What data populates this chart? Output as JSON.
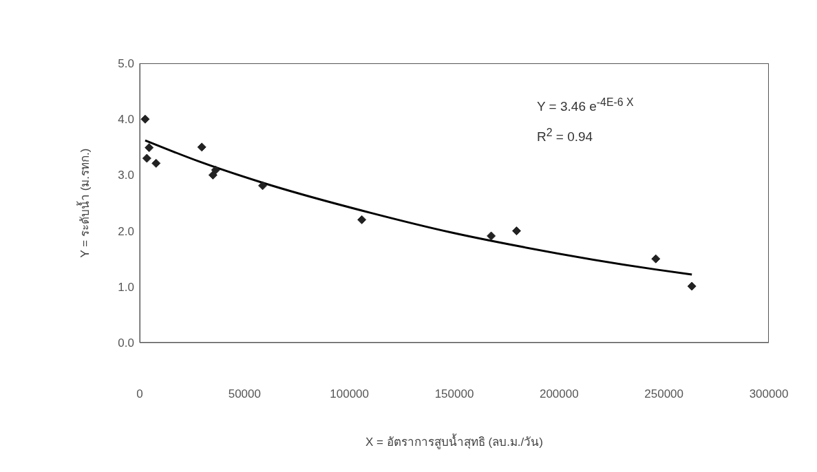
{
  "chart_data": {
    "type": "scatter",
    "xlabel": "X =  อัตราการสูบน้ำสุทธิ (ลบ.ม./วัน)",
    "ylabel": "Y =  ระดับน้ำ (ม.รทก.)",
    "xlim": [
      0,
      300000
    ],
    "xticks": [
      0,
      50000,
      100000,
      150000,
      200000,
      250000,
      300000
    ],
    "ylim": [
      0,
      5
    ],
    "yticks": [
      {
        "value": 0,
        "label": "0.0"
      },
      {
        "value": 1,
        "label": "1.0"
      },
      {
        "value": 2,
        "label": "2.0"
      },
      {
        "value": 3,
        "label": "3.0"
      },
      {
        "value": 4,
        "label": "4.0"
      },
      {
        "value": 5,
        "label": "5.0"
      }
    ],
    "grid": false,
    "legend": false,
    "marker": "diamond",
    "series": [
      {
        "type": "scatter",
        "color": "#222222",
        "x": [
          2600,
          4500,
          3400,
          7800,
          29600,
          34900,
          36200,
          58600,
          105900,
          167600,
          179700,
          246100,
          263300
        ],
        "values": [
          4.0,
          3.49,
          3.3,
          3.21,
          3.5,
          3.0,
          3.09,
          2.81,
          2.2,
          1.91,
          2.0,
          1.5,
          1.01
        ]
      },
      {
        "type": "line",
        "color": "#000000",
        "marker": "none",
        "x": [
          2600,
          28500,
          58000,
          110500,
          148800,
          181600,
          246000,
          263300
        ],
        "values": [
          3.62,
          3.24,
          2.87,
          2.32,
          1.97,
          1.72,
          1.31,
          1.22
        ]
      }
    ],
    "annotations": [
      "Y = 3.46 e$^{-4E-6 X}$",
      "R$^{2}$ = 0.94"
    ]
  }
}
